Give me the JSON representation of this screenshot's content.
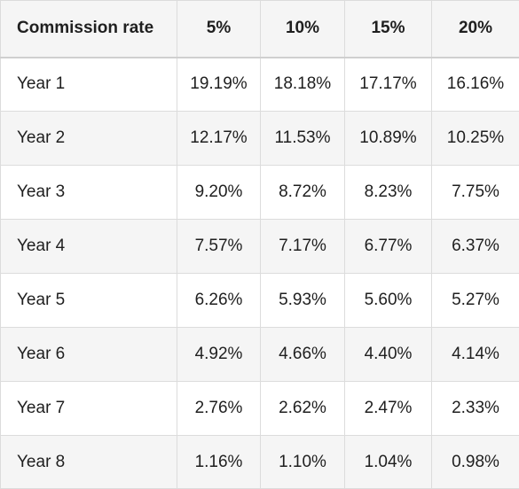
{
  "table": {
    "header": {
      "label": "Commission rate",
      "columns": [
        "5%",
        "10%",
        "15%",
        "20%"
      ]
    },
    "rows": [
      {
        "label": "Year 1",
        "values": [
          "19.19%",
          "18.18%",
          "17.17%",
          "16.16%"
        ]
      },
      {
        "label": "Year 2",
        "values": [
          "12.17%",
          "11.53%",
          "10.89%",
          "10.25%"
        ]
      },
      {
        "label": "Year 3",
        "values": [
          "9.20%",
          "8.72%",
          "8.23%",
          "7.75%"
        ]
      },
      {
        "label": "Year 4",
        "values": [
          "7.57%",
          "7.17%",
          "6.77%",
          "6.37%"
        ]
      },
      {
        "label": "Year 5",
        "values": [
          "6.26%",
          "5.93%",
          "5.60%",
          "5.27%"
        ]
      },
      {
        "label": "Year 6",
        "values": [
          "4.92%",
          "4.66%",
          "4.40%",
          "4.14%"
        ]
      },
      {
        "label": "Year 7",
        "values": [
          "2.76%",
          "2.62%",
          "2.47%",
          "2.33%"
        ]
      },
      {
        "label": "Year 8",
        "values": [
          "1.16%",
          "1.10%",
          "1.04%",
          "0.98%"
        ]
      }
    ]
  }
}
